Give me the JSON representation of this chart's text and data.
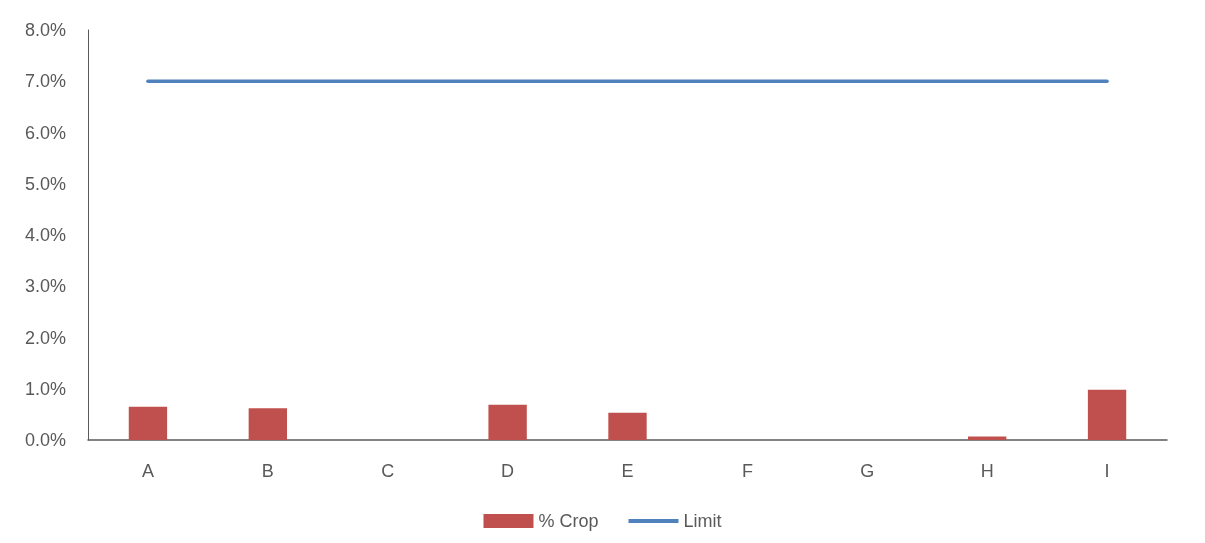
{
  "chart_data": {
    "type": "bar",
    "categories": [
      "A",
      "B",
      "C",
      "D",
      "E",
      "F",
      "G",
      "H",
      "I"
    ],
    "series": [
      {
        "name": "% Crop",
        "color": "#c0504d",
        "values": [
          0.65,
          0.62,
          0,
          0.69,
          0.53,
          0,
          0,
          0.07,
          0.98
        ]
      },
      {
        "name": "Limit",
        "type": "line",
        "color": "#4f81bd",
        "values": [
          7,
          7,
          7,
          7,
          7,
          7,
          7,
          7,
          7
        ],
        "marker": "none"
      }
    ],
    "ylim": [
      0,
      8
    ],
    "yticks": [
      {
        "value": 0,
        "label": "0.0%"
      },
      {
        "value": 1,
        "label": "1.0%"
      },
      {
        "value": 2,
        "label": "2.0%"
      },
      {
        "value": 3,
        "label": "3.0%"
      },
      {
        "value": 4,
        "label": "4.0%"
      },
      {
        "value": 5,
        "label": "5.0%"
      },
      {
        "value": 6,
        "label": "6.0%"
      },
      {
        "value": 7,
        "label": "7.0%"
      },
      {
        "value": 8,
        "label": "8.0%"
      }
    ],
    "grid": false,
    "legend": "bottom"
  }
}
